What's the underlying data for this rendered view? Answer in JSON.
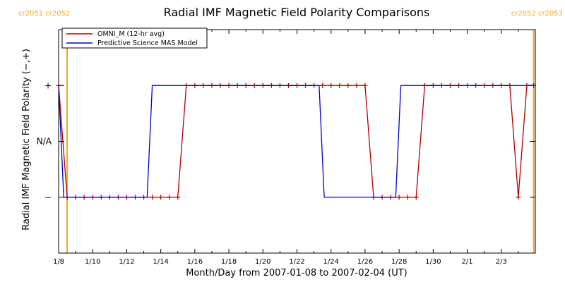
{
  "chart_data": {
    "type": "line",
    "title": "Radial IMF Magnetic Field Polarity Comparisons",
    "xlabel": "Month/Day from 2007-01-08 to 2007-02-04 (UT)",
    "ylabel": "Radial IMF Magnetic Field Polarity (−,+)",
    "xlim": [
      0,
      28
    ],
    "ylim": [
      -2,
      2
    ],
    "x_ticks": [
      {
        "x": 0,
        "label": "1/8"
      },
      {
        "x": 2,
        "label": "1/10"
      },
      {
        "x": 4,
        "label": "1/12"
      },
      {
        "x": 6,
        "label": "1/14"
      },
      {
        "x": 8,
        "label": "1/16"
      },
      {
        "x": 10,
        "label": "1/18"
      },
      {
        "x": 12,
        "label": "1/20"
      },
      {
        "x": 14,
        "label": "1/22"
      },
      {
        "x": 16,
        "label": "1/24"
      },
      {
        "x": 18,
        "label": "1/26"
      },
      {
        "x": 20,
        "label": "1/28"
      },
      {
        "x": 22,
        "label": "1/30"
      },
      {
        "x": 24,
        "label": "2/1"
      },
      {
        "x": 26,
        "label": "2/3"
      }
    ],
    "y_ticks": [
      {
        "y": 1,
        "label": "+"
      },
      {
        "y": 0,
        "label": "N/A"
      },
      {
        "y": -1,
        "label": "−"
      }
    ],
    "carrington_markers": [
      {
        "x": 0.5,
        "labels": [
          "cr2051",
          "cr2052"
        ],
        "color": "#f5a623"
      },
      {
        "x": 27.9,
        "labels": [
          "cr2052",
          "cr2053"
        ],
        "color": "#f5a623"
      }
    ],
    "series": [
      {
        "name": "OMNI_M (12-hr avg)",
        "color": "#b00000",
        "marker": "plus",
        "points": [
          [
            0.0,
            1
          ],
          [
            0.5,
            -1
          ],
          [
            1.0,
            -1
          ],
          [
            1.5,
            -1
          ],
          [
            2.0,
            -1
          ],
          [
            2.5,
            -1
          ],
          [
            3.0,
            -1
          ],
          [
            3.5,
            -1
          ],
          [
            4.0,
            -1
          ],
          [
            4.5,
            -1
          ],
          [
            5.0,
            -1
          ],
          [
            5.5,
            -1
          ],
          [
            6.0,
            -1
          ],
          [
            6.5,
            -1
          ],
          [
            7.0,
            -1
          ],
          [
            7.5,
            1
          ],
          [
            8.0,
            1
          ],
          [
            8.5,
            1
          ],
          [
            9.0,
            1
          ],
          [
            9.5,
            1
          ],
          [
            10.0,
            1
          ],
          [
            10.5,
            1
          ],
          [
            11.0,
            1
          ],
          [
            11.5,
            1
          ],
          [
            12.0,
            1
          ],
          [
            12.5,
            1
          ],
          [
            13.0,
            1
          ],
          [
            13.5,
            1
          ],
          [
            14.0,
            1
          ],
          [
            14.5,
            1
          ],
          [
            15.0,
            1
          ],
          [
            15.5,
            1
          ],
          [
            16.0,
            1
          ],
          [
            16.5,
            1
          ],
          [
            17.0,
            1
          ],
          [
            17.5,
            1
          ],
          [
            18.0,
            1
          ],
          [
            18.5,
            -1
          ],
          [
            19.0,
            -1
          ],
          [
            19.5,
            -1
          ],
          [
            20.0,
            -1
          ],
          [
            20.5,
            -1
          ],
          [
            21.0,
            -1
          ],
          [
            21.5,
            1
          ],
          [
            22.0,
            1
          ],
          [
            22.5,
            1
          ],
          [
            23.0,
            1
          ],
          [
            23.5,
            1
          ],
          [
            24.0,
            1
          ],
          [
            24.5,
            1
          ],
          [
            25.0,
            1
          ],
          [
            25.5,
            1
          ],
          [
            26.0,
            1
          ],
          [
            26.5,
            1
          ],
          [
            27.0,
            -1
          ],
          [
            27.5,
            1
          ],
          [
            27.9,
            1
          ]
        ]
      },
      {
        "name": "Predictive Science MAS Model",
        "color": "#0000cc",
        "marker": "none",
        "points": [
          [
            0.0,
            1
          ],
          [
            0.3,
            -1
          ],
          [
            5.2,
            -1
          ],
          [
            5.5,
            1
          ],
          [
            15.3,
            1
          ],
          [
            15.6,
            -1
          ],
          [
            19.8,
            -1
          ],
          [
            20.1,
            1
          ],
          [
            27.9,
            1
          ]
        ]
      }
    ],
    "legend": {
      "position": "top-left"
    },
    "grid": false
  }
}
